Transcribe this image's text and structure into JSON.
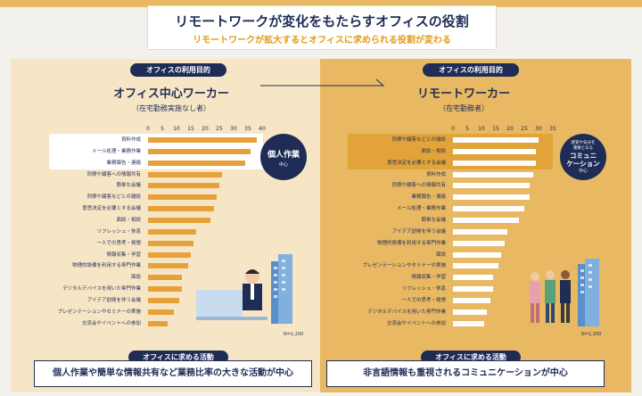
{
  "header": {
    "title": "リモートワークが変化をもたらすオフィスの役割",
    "subtitle": "リモートワークが拡大するとオフィスに求められる役割が変わる"
  },
  "left": {
    "pill": "オフィスの利用目的",
    "heading": "オフィス中心ワーカー",
    "subheading": "（在宅勤務実施なし者）",
    "circle_label": "個人作業",
    "circle_note": "中心",
    "n_label": "N=1,200",
    "bottom_pill": "オフィスに求める活動",
    "bottom_text": "個人作業や簡単な情報共有など業務比率の大きな活動が中心"
  },
  "right": {
    "pill": "オフィスの利用目的",
    "heading": "リモートワーカー",
    "subheading": "（在宅勤務者）",
    "circle_small": "感覚や気分を\n重要となる",
    "circle_label": "コミュニ\nケーション",
    "circle_note": "中心",
    "n_label": "N=1,200",
    "bottom_pill": "オフィスに求める活動",
    "bottom_text": "非言語情報も重視されるコミュニケーションが中心"
  },
  "chart_data": [
    {
      "type": "bar",
      "orientation": "horizontal",
      "xlim": [
        0,
        40
      ],
      "ticks": [
        "0",
        "5",
        "10",
        "15",
        "20",
        "25",
        "30",
        "35",
        "40"
      ],
      "categories": [
        "資料作成",
        "メール処理・業務作業",
        "業務報告・連絡",
        "同僚や顧客への情報共有",
        "簡単な会議",
        "同僚や顧客などとの雑談",
        "意思決定を必要とする会議",
        "面談・相談",
        "リフレッシュ・休息",
        "一人での思考・発想",
        "情報収集・学習",
        "物理的設備を利用する専門作業",
        "面談",
        "デジタルデバイスを用いた専門作業",
        "アイデア創発を伴う会議",
        "プレゼンテーションやセミナーの実施",
        "交流会やイベントへの参加"
      ],
      "values": [
        38,
        36,
        34,
        26,
        25,
        24,
        23,
        22,
        17,
        16,
        15,
        14,
        12,
        12,
        11,
        9,
        7
      ],
      "highlighted": [
        0,
        1,
        2
      ]
    },
    {
      "type": "bar",
      "orientation": "horizontal",
      "xlim": [
        0,
        35
      ],
      "ticks": [
        "0",
        "5",
        "10",
        "15",
        "20",
        "25",
        "30",
        "35"
      ],
      "categories": [
        "同僚や顧客などとの雑談",
        "面談・相談",
        "意思決定を必要とする会議",
        "資料作成",
        "同僚や顧客への情報共有",
        "業務報告・連絡",
        "メール処理・業務作業",
        "簡単な会議",
        "アイデア創発を伴う会議",
        "物理的設備を利用する専門作業",
        "面談",
        "プレゼンテーションやセミナーの実施",
        "情報収集・学習",
        "リフレッシュ・休息",
        "一人での思考・発想",
        "デジタルデバイスを用いた専門作業",
        "交流会やイベントへの参加"
      ],
      "values": [
        30,
        29,
        29,
        28,
        27,
        27,
        25,
        23,
        19,
        18,
        17,
        16,
        14,
        14,
        13,
        12,
        11
      ],
      "highlighted": [
        0,
        1,
        2
      ]
    }
  ]
}
